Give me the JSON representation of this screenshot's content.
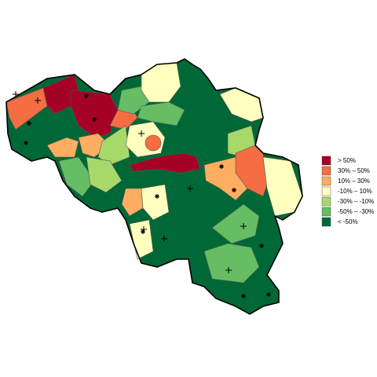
{
  "legend": {
    "items": [
      {
        "label": "> 50%",
        "color": "#a50026"
      },
      {
        "label": "30% – 50%",
        "color": "#f46d43"
      },
      {
        "label": "10% – 30%",
        "color": "#fdae61"
      },
      {
        "label": "-10% – 10%",
        "color": "#ffffbf"
      },
      {
        "label": "-30% – -10%",
        "color": "#a6d96a"
      },
      {
        "label": "-50% – -30%",
        "color": "#66bd63"
      },
      {
        "label": "< -50%",
        "color": "#006837"
      }
    ]
  }
}
